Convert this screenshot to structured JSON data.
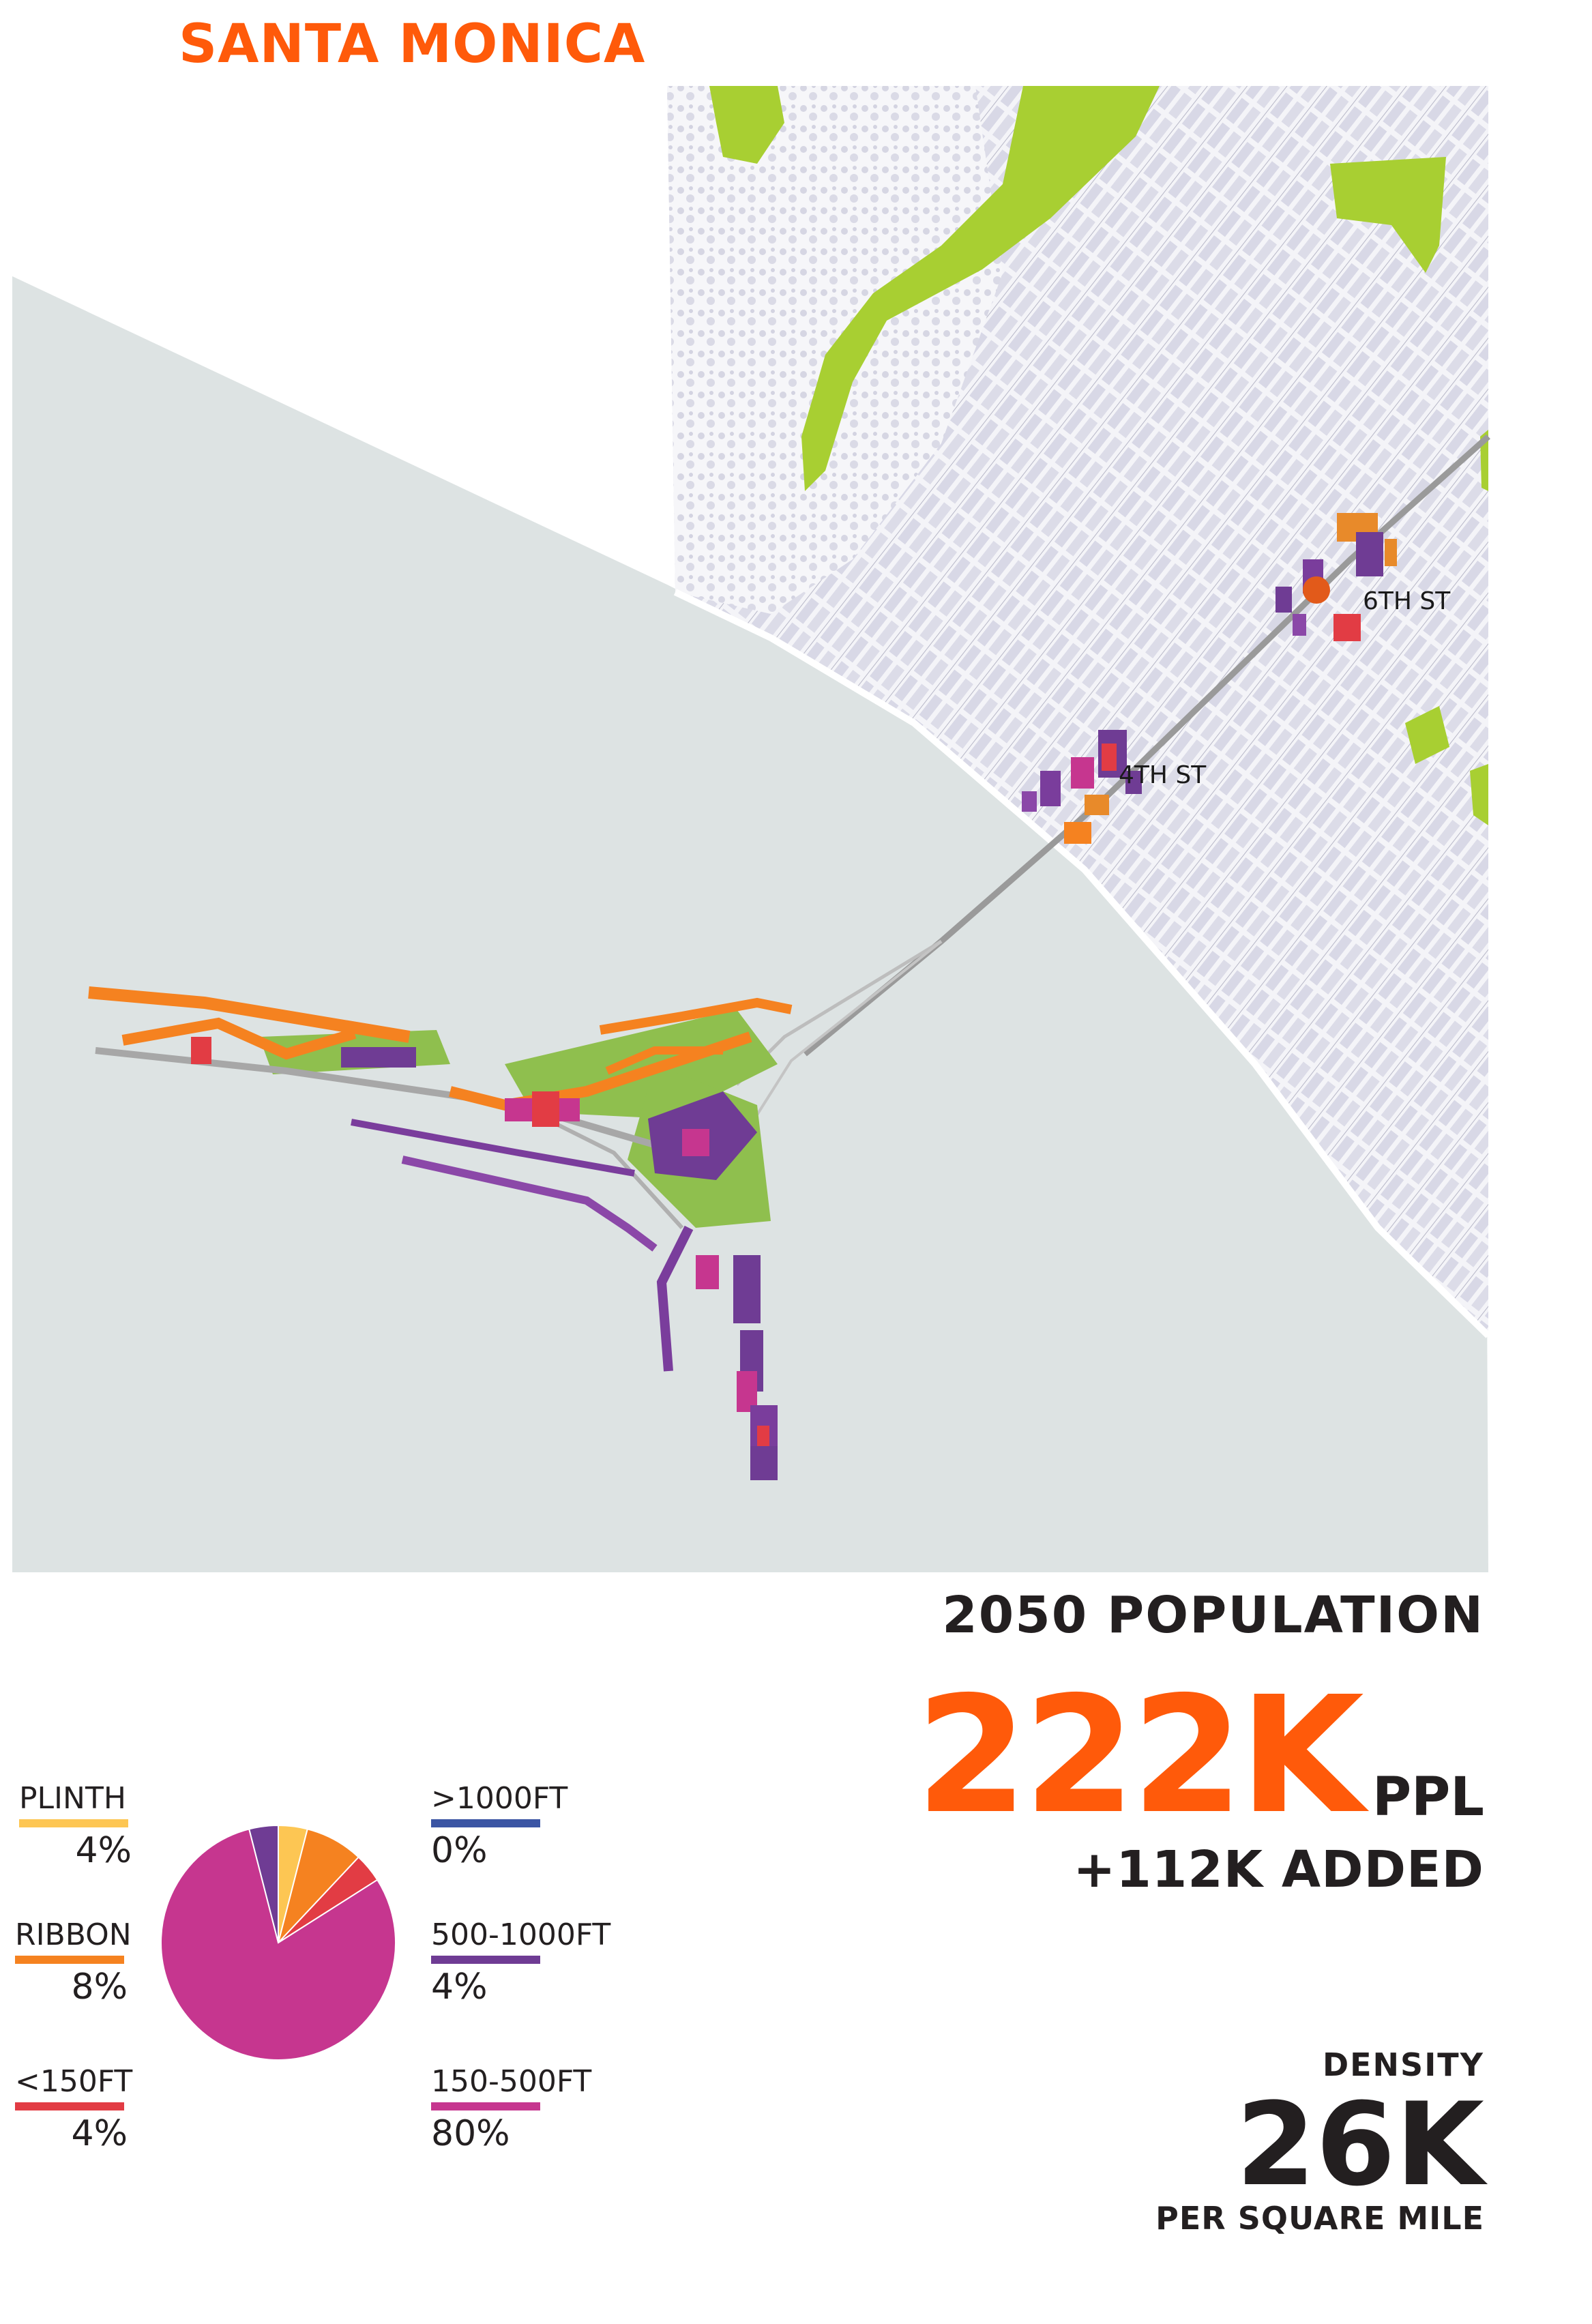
{
  "title": "SANTA MONICA",
  "map": {
    "street_labels": [
      "6TH ST",
      "4TH ST"
    ]
  },
  "population": {
    "title": "2050 POPULATION",
    "value": "222K",
    "unit": "PPL",
    "added": "+112K ADDED"
  },
  "density": {
    "title": "DENSITY",
    "value": "26K",
    "unit": "PER SQUARE MILE"
  },
  "legend": {
    "items": [
      {
        "label": "PLINTH",
        "pct": "4%",
        "color": "#fdc653"
      },
      {
        "label": "RIBBON",
        "pct": "8%",
        "color": "#f58220"
      },
      {
        "label": "<150FT",
        "pct": "4%",
        "color": "#e23c44"
      },
      {
        "label": ">1000FT",
        "pct": "0%",
        "color": "#3b55a4"
      },
      {
        "label": "500-1000FT",
        "pct": "4%",
        "color": "#6f3c94"
      },
      {
        "label": "150-500FT",
        "pct": "80%",
        "color": "#c6368f"
      }
    ]
  },
  "chart_data": {
    "type": "pie",
    "categories": [
      "PLINTH",
      "RIBBON",
      "<150FT",
      "150-500FT",
      "500-1000FT",
      ">1000FT"
    ],
    "values": [
      4,
      8,
      4,
      80,
      4,
      0
    ],
    "colors": [
      "#fdc653",
      "#f58220",
      "#e23c44",
      "#c6368f",
      "#6f3c94",
      "#3b55a4"
    ]
  },
  "colors": {
    "accent": "#ff5a0a",
    "ocean": "#dde3e3",
    "park": "#a8cf32",
    "text": "#231f20"
  }
}
